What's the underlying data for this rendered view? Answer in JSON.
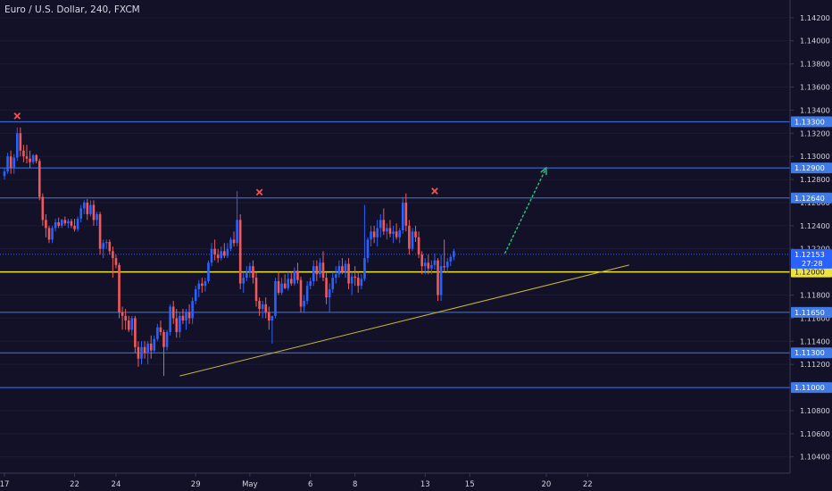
{
  "chart_data": {
    "type": "candlestick",
    "title": "Euro / U.S. Dollar, 240, FXCM",
    "symbol": "EURUSD",
    "ylim": [
      1.1034,
      1.1428
    ],
    "y_ticks": [
      "1.14200",
      "1.14000",
      "1.13800",
      "1.13600",
      "1.13400",
      "1.13200",
      "1.13000",
      "1.12800",
      "1.12600",
      "1.12400",
      "1.12200",
      "1.12000",
      "1.11800",
      "1.11600",
      "1.11400",
      "1.11200",
      "1.11000",
      "1.10800",
      "1.10600",
      "1.10400"
    ],
    "x_ticks": [
      {
        "label": "17",
        "index": 0
      },
      {
        "label": "22",
        "index": 22
      },
      {
        "label": "24",
        "index": 35
      },
      {
        "label": "29",
        "index": 60
      },
      {
        "label": "May",
        "index": 77
      },
      {
        "label": "6",
        "index": 96
      },
      {
        "label": "8",
        "index": 110
      },
      {
        "label": "13",
        "index": 132
      },
      {
        "label": "15",
        "index": 146
      },
      {
        "label": "20",
        "index": 170
      },
      {
        "label": "22",
        "index": 183
      }
    ],
    "horizontal_levels": [
      {
        "price": 1.133,
        "label": "1.13300",
        "color": "#3f7ae6"
      },
      {
        "price": 1.129,
        "label": "1.12900",
        "color": "#3f7ae6"
      },
      {
        "price": 1.1264,
        "label": "1.12640",
        "color": "#3f7ae6"
      },
      {
        "price": 1.1165,
        "label": "1.11650",
        "color": "#3f7ae6"
      },
      {
        "price": 1.113,
        "label": "1.11300",
        "color": "#3f7ae6"
      },
      {
        "price": 1.11,
        "label": "1.11000",
        "color": "#3f7ae6"
      },
      {
        "price": 1.12,
        "label": "1.12000",
        "color": "#ece33d"
      }
    ],
    "current_price": {
      "price": 1.12153,
      "label": "1.12153",
      "countdown": "27:28"
    },
    "trendline": {
      "from": {
        "index": 55,
        "price": 1.111
      },
      "to": {
        "index": 196,
        "price": 1.1206
      }
    },
    "projection_arrow": {
      "from": {
        "index": 157,
        "price": 1.1216
      },
      "to": {
        "index": 170,
        "price": 1.129
      }
    },
    "markers": [
      {
        "index": 4,
        "price": 1.1335,
        "symbol": "x"
      },
      {
        "index": 80,
        "price": 1.1269,
        "symbol": "x"
      },
      {
        "index": 135,
        "price": 1.127,
        "symbol": "x"
      }
    ],
    "candles": [
      [
        1.1283,
        1.129,
        1.128,
        1.1287
      ],
      [
        1.1287,
        1.1303,
        1.1285,
        1.13
      ],
      [
        1.13,
        1.1305,
        1.1285,
        1.129
      ],
      [
        1.129,
        1.1302,
        1.1285,
        1.1299
      ],
      [
        1.1299,
        1.1325,
        1.1296,
        1.132
      ],
      [
        1.132,
        1.1325,
        1.13,
        1.1305
      ],
      [
        1.1305,
        1.131,
        1.1295,
        1.13
      ],
      [
        1.13,
        1.131,
        1.1294,
        1.1298
      ],
      [
        1.1298,
        1.1305,
        1.129,
        1.1295
      ],
      [
        1.1295,
        1.1302,
        1.1293,
        1.1301
      ],
      [
        1.1301,
        1.1302,
        1.1294,
        1.1296
      ],
      [
        1.1296,
        1.1298,
        1.1262,
        1.1265
      ],
      [
        1.1265,
        1.1268,
        1.124,
        1.1245
      ],
      [
        1.1245,
        1.125,
        1.123,
        1.1238
      ],
      [
        1.1238,
        1.124,
        1.1225,
        1.1228
      ],
      [
        1.1228,
        1.124,
        1.1225,
        1.1238
      ],
      [
        1.1238,
        1.1246,
        1.1235,
        1.1243
      ],
      [
        1.1243,
        1.1247,
        1.1238,
        1.124
      ],
      [
        1.124,
        1.1246,
        1.1238,
        1.1245
      ],
      [
        1.1245,
        1.1248,
        1.124,
        1.1242
      ],
      [
        1.1242,
        1.1246,
        1.1238,
        1.1244
      ],
      [
        1.1244,
        1.1246,
        1.1238,
        1.124
      ],
      [
        1.124,
        1.1246,
        1.1235,
        1.1237
      ],
      [
        1.1237,
        1.1248,
        1.1235,
        1.1246
      ],
      [
        1.1246,
        1.1258,
        1.1243,
        1.1255
      ],
      [
        1.1255,
        1.1262,
        1.125,
        1.126
      ],
      [
        1.126,
        1.1263,
        1.1245,
        1.125
      ],
      [
        1.125,
        1.1262,
        1.1248,
        1.1258
      ],
      [
        1.1258,
        1.1262,
        1.124,
        1.1245
      ],
      [
        1.1245,
        1.1252,
        1.124,
        1.125
      ],
      [
        1.125,
        1.1252,
        1.1215,
        1.122
      ],
      [
        1.122,
        1.1228,
        1.1212,
        1.1225
      ],
      [
        1.1225,
        1.1228,
        1.122,
        1.1226
      ],
      [
        1.1226,
        1.1228,
        1.1215,
        1.1218
      ],
      [
        1.1218,
        1.1222,
        1.1195,
        1.1212
      ],
      [
        1.1212,
        1.1215,
        1.1203,
        1.1206
      ],
      [
        1.1206,
        1.1208,
        1.116,
        1.1165
      ],
      [
        1.1165,
        1.117,
        1.115,
        1.1162
      ],
      [
        1.1162,
        1.1168,
        1.115,
        1.1158
      ],
      [
        1.1158,
        1.1162,
        1.1148,
        1.115
      ],
      [
        1.115,
        1.1162,
        1.1145,
        1.116
      ],
      [
        1.116,
        1.1162,
        1.113,
        1.1135
      ],
      [
        1.1135,
        1.114,
        1.1118,
        1.1125
      ],
      [
        1.1125,
        1.114,
        1.112,
        1.1135
      ],
      [
        1.1135,
        1.114,
        1.1125,
        1.113
      ],
      [
        1.113,
        1.114,
        1.112,
        1.1138
      ],
      [
        1.1138,
        1.1145,
        1.1125,
        1.1132
      ],
      [
        1.1132,
        1.1145,
        1.113,
        1.1142
      ],
      [
        1.1142,
        1.1155,
        1.114,
        1.1152
      ],
      [
        1.1152,
        1.1158,
        1.1145,
        1.1148
      ],
      [
        1.1148,
        1.115,
        1.111,
        1.1135
      ],
      [
        1.1135,
        1.115,
        1.1132,
        1.1148
      ],
      [
        1.1148,
        1.1172,
        1.1145,
        1.117
      ],
      [
        1.117,
        1.1175,
        1.1155,
        1.116
      ],
      [
        1.116,
        1.1168,
        1.1143,
        1.1148
      ],
      [
        1.1148,
        1.1165,
        1.1143,
        1.1162
      ],
      [
        1.1162,
        1.1168,
        1.1155,
        1.1158
      ],
      [
        1.1158,
        1.1168,
        1.115,
        1.1165
      ],
      [
        1.1165,
        1.1172,
        1.1155,
        1.116
      ],
      [
        1.116,
        1.1178,
        1.1155,
        1.1175
      ],
      [
        1.1175,
        1.1188,
        1.1172,
        1.1185
      ],
      [
        1.1185,
        1.1193,
        1.1178,
        1.119
      ],
      [
        1.119,
        1.1195,
        1.1182,
        1.1188
      ],
      [
        1.1188,
        1.1195,
        1.1183,
        1.1192
      ],
      [
        1.1192,
        1.121,
        1.119,
        1.1208
      ],
      [
        1.1208,
        1.1225,
        1.1205,
        1.122
      ],
      [
        1.122,
        1.1228,
        1.121,
        1.1215
      ],
      [
        1.1215,
        1.122,
        1.1208,
        1.1212
      ],
      [
        1.1212,
        1.1222,
        1.121,
        1.1218
      ],
      [
        1.1218,
        1.1225,
        1.1212,
        1.1214
      ],
      [
        1.1214,
        1.1225,
        1.1212,
        1.122
      ],
      [
        1.122,
        1.123,
        1.1218,
        1.1228
      ],
      [
        1.1228,
        1.1235,
        1.1222,
        1.1225
      ],
      [
        1.1225,
        1.127,
        1.1222,
        1.1245
      ],
      [
        1.1245,
        1.125,
        1.1185,
        1.119
      ],
      [
        1.119,
        1.12,
        1.1182,
        1.1195
      ],
      [
        1.1195,
        1.1205,
        1.1192,
        1.12
      ],
      [
        1.12,
        1.1208,
        1.1195,
        1.1205
      ],
      [
        1.1205,
        1.121,
        1.119,
        1.1195
      ],
      [
        1.1195,
        1.12,
        1.117,
        1.1175
      ],
      [
        1.1175,
        1.1178,
        1.1162,
        1.1168
      ],
      [
        1.1168,
        1.1175,
        1.116,
        1.1172
      ],
      [
        1.1172,
        1.1178,
        1.116,
        1.1165
      ],
      [
        1.1165,
        1.117,
        1.115,
        1.1158
      ],
      [
        1.1158,
        1.1162,
        1.1138,
        1.1162
      ],
      [
        1.1162,
        1.1195,
        1.116,
        1.1192
      ],
      [
        1.1192,
        1.12,
        1.118,
        1.1182
      ],
      [
        1.1182,
        1.1195,
        1.118,
        1.119
      ],
      [
        1.119,
        1.1198,
        1.1185,
        1.1186
      ],
      [
        1.1186,
        1.12,
        1.1184,
        1.1194
      ],
      [
        1.1194,
        1.12,
        1.1188,
        1.119
      ],
      [
        1.119,
        1.1204,
        1.1188,
        1.1201
      ],
      [
        1.1201,
        1.1208,
        1.119,
        1.1193
      ],
      [
        1.1193,
        1.1196,
        1.1165,
        1.117
      ],
      [
        1.117,
        1.118,
        1.1165,
        1.1175
      ],
      [
        1.1175,
        1.1192,
        1.1172,
        1.1188
      ],
      [
        1.1188,
        1.1195,
        1.1185,
        1.1192
      ],
      [
        1.1192,
        1.121,
        1.1188,
        1.1205
      ],
      [
        1.1205,
        1.121,
        1.1192,
        1.1198
      ],
      [
        1.1198,
        1.1212,
        1.1195,
        1.1208
      ],
      [
        1.1208,
        1.1218,
        1.1192,
        1.1195
      ],
      [
        1.1195,
        1.12,
        1.1172,
        1.1178
      ],
      [
        1.1178,
        1.119,
        1.1165,
        1.1185
      ],
      [
        1.1185,
        1.12,
        1.1182,
        1.1195
      ],
      [
        1.1195,
        1.1205,
        1.119,
        1.1198
      ],
      [
        1.1198,
        1.121,
        1.1195,
        1.1205
      ],
      [
        1.1205,
        1.1212,
        1.1198,
        1.12
      ],
      [
        1.12,
        1.121,
        1.1195,
        1.1207
      ],
      [
        1.1207,
        1.1212,
        1.1185,
        1.119
      ],
      [
        1.119,
        1.12,
        1.118,
        1.1196
      ],
      [
        1.1196,
        1.1205,
        1.1188,
        1.1195
      ],
      [
        1.1195,
        1.12,
        1.1182,
        1.1188
      ],
      [
        1.1188,
        1.1198,
        1.1185,
        1.1194
      ],
      [
        1.1194,
        1.1258,
        1.1192,
        1.1212
      ],
      [
        1.1212,
        1.123,
        1.1208,
        1.1228
      ],
      [
        1.1228,
        1.124,
        1.1222,
        1.1235
      ],
      [
        1.1235,
        1.124,
        1.1225,
        1.123
      ],
      [
        1.123,
        1.1245,
        1.1222,
        1.1238
      ],
      [
        1.1238,
        1.125,
        1.123,
        1.1245
      ],
      [
        1.1245,
        1.1255,
        1.1232,
        1.1235
      ],
      [
        1.1235,
        1.1242,
        1.1228,
        1.1238
      ],
      [
        1.1238,
        1.1245,
        1.123,
        1.1233
      ],
      [
        1.1233,
        1.124,
        1.1225,
        1.1235
      ],
      [
        1.1235,
        1.1242,
        1.1228,
        1.123
      ],
      [
        1.123,
        1.1238,
        1.1225,
        1.1236
      ],
      [
        1.1236,
        1.1265,
        1.1233,
        1.126
      ],
      [
        1.126,
        1.1268,
        1.1235,
        1.124
      ],
      [
        1.124,
        1.1245,
        1.1215,
        1.122
      ],
      [
        1.122,
        1.1238,
        1.1218,
        1.1235
      ],
      [
        1.1235,
        1.124,
        1.1226,
        1.123
      ],
      [
        1.123,
        1.1235,
        1.1212,
        1.1215
      ],
      [
        1.1215,
        1.1218,
        1.1198,
        1.1205
      ],
      [
        1.1205,
        1.1212,
        1.1198,
        1.1208
      ],
      [
        1.1208,
        1.1215,
        1.1198,
        1.1203
      ],
      [
        1.1203,
        1.121,
        1.1198,
        1.1206
      ],
      [
        1.1206,
        1.1216,
        1.1202,
        1.121
      ],
      [
        1.121,
        1.1212,
        1.1175,
        1.118
      ],
      [
        1.118,
        1.1215,
        1.1175,
        1.1205
      ],
      [
        1.1205,
        1.1228,
        1.12,
        1.1204
      ],
      [
        1.1204,
        1.1212,
        1.12,
        1.1209
      ],
      [
        1.1209,
        1.1215,
        1.1205,
        1.1213
      ],
      [
        1.1213,
        1.122,
        1.121,
        1.1218
      ]
    ]
  },
  "colors": {
    "background": "#131128",
    "up_candle": "#2962ff",
    "down_candle": "#f05a5a",
    "level_line": "#3f7ae6",
    "support_line": "#ece33d",
    "trendline": "#c8b43a",
    "arrow": "#27c77a",
    "marker": "#ef5350",
    "axis_text": "#d2d4dc"
  }
}
